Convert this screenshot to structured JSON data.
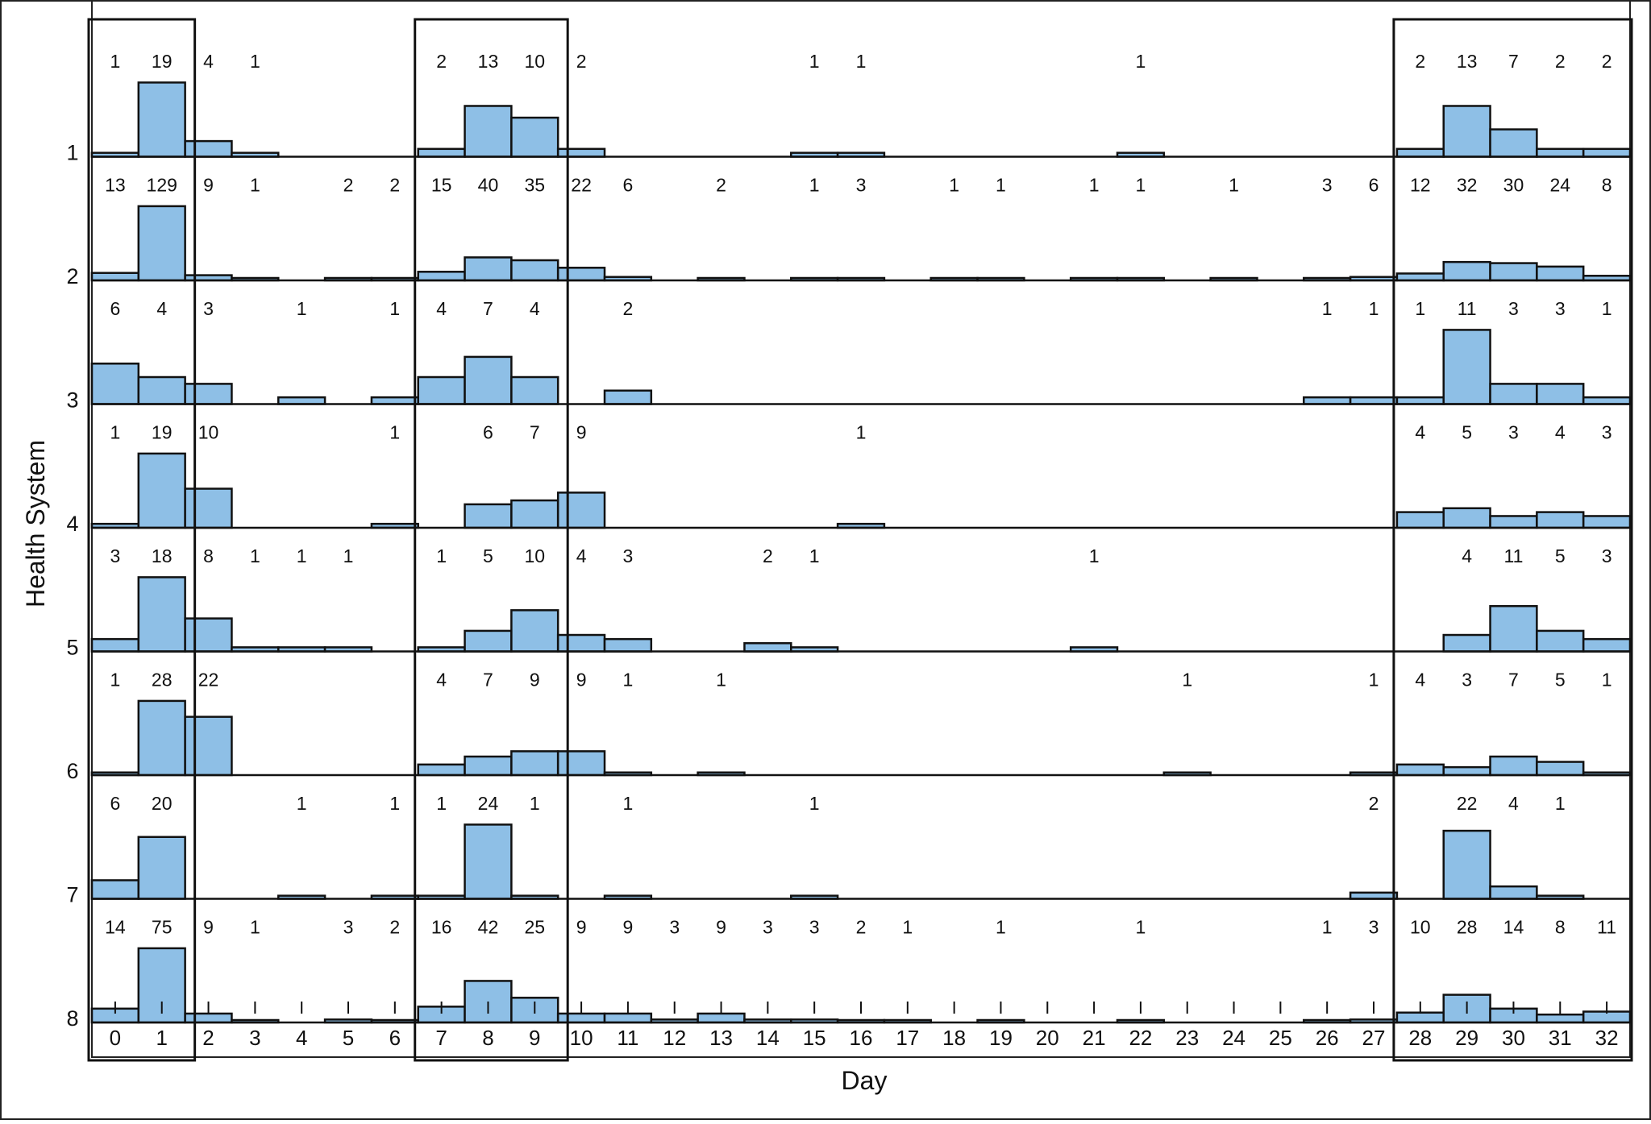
{
  "chart_data": {
    "type": "histogram",
    "xlabel": "Day",
    "ylabel": "Health System",
    "x": [
      0,
      1,
      2,
      3,
      4,
      5,
      6,
      7,
      8,
      9,
      10,
      11,
      12,
      13,
      14,
      15,
      16,
      17,
      18,
      19,
      20,
      21,
      22,
      23,
      24,
      25,
      26,
      27,
      28,
      29,
      30,
      31,
      32
    ],
    "x_ticks": [
      "0",
      "1",
      "2",
      "3",
      "4",
      "5",
      "6",
      "7",
      "8",
      "9",
      "10",
      "11",
      "12",
      "13",
      "14",
      "15",
      "16",
      "17",
      "18",
      "19",
      "20",
      "21",
      "22",
      "23",
      "24",
      "25",
      "26",
      "27",
      "28",
      "29",
      "30",
      "31",
      "32"
    ],
    "bar_color": "#8ebfe6",
    "highlighted_day_ranges": [
      [
        0,
        1
      ],
      [
        7,
        9
      ],
      [
        28,
        32
      ]
    ],
    "series": [
      {
        "name": "1",
        "counts": {
          "0": 1,
          "1": 19,
          "2": 4,
          "3": 1,
          "7": 2,
          "8": 13,
          "9": 10,
          "10": 2,
          "15": 1,
          "16": 1,
          "22": 1,
          "28": 2,
          "29": 13,
          "30": 7,
          "31": 2,
          "32": 2
        }
      },
      {
        "name": "2",
        "counts": {
          "0": 13,
          "1": 129,
          "2": 9,
          "3": 1,
          "5": 2,
          "6": 2,
          "7": 15,
          "8": 40,
          "9": 35,
          "10": 22,
          "11": 6,
          "13": 2,
          "15": 1,
          "16": 3,
          "18": 1,
          "19": 1,
          "21": 1,
          "22": 1,
          "24": 1,
          "26": 3,
          "27": 6,
          "28": 12,
          "29": 32,
          "30": 30,
          "31": 24,
          "32": 8
        }
      },
      {
        "name": "3",
        "counts": {
          "0": 6,
          "1": 4,
          "2": 3,
          "4": 1,
          "6": 1,
          "7": 4,
          "8": 7,
          "9": 4,
          "11": 2,
          "26": 1,
          "27": 1,
          "28": 1,
          "29": 11,
          "30": 3,
          "31": 3,
          "32": 1
        }
      },
      {
        "name": "4",
        "counts": {
          "0": 1,
          "1": 19,
          "2": 10,
          "6": 1,
          "8": 6,
          "9": 7,
          "10": 9,
          "16": 1,
          "28": 4,
          "29": 5,
          "30": 3,
          "31": 4,
          "32": 3
        }
      },
      {
        "name": "5",
        "counts": {
          "0": 3,
          "1": 18,
          "2": 8,
          "3": 1,
          "4": 1,
          "5": 1,
          "7": 1,
          "8": 5,
          "9": 10,
          "10": 4,
          "11": 3,
          "14": 2,
          "15": 1,
          "21": 1,
          "29": 4,
          "30": 11,
          "31": 5,
          "32": 3
        }
      },
      {
        "name": "6",
        "counts": {
          "0": 1,
          "1": 28,
          "2": 22,
          "7": 4,
          "8": 7,
          "9": 9,
          "10": 9,
          "11": 1,
          "13": 1,
          "23": 1,
          "27": 1,
          "28": 4,
          "29": 3,
          "30": 7,
          "31": 5,
          "32": 1
        }
      },
      {
        "name": "7",
        "counts": {
          "0": 6,
          "1": 20,
          "4": 1,
          "6": 1,
          "7": 1,
          "8": 24,
          "9": 1,
          "11": 1,
          "15": 1,
          "27": 2,
          "29": 22,
          "30": 4,
          "31": 1
        }
      },
      {
        "name": "8",
        "counts": {
          "0": 14,
          "1": 75,
          "2": 9,
          "3": 1,
          "5": 3,
          "6": 2,
          "7": 16,
          "8": 42,
          "9": 25,
          "10": 9,
          "11": 9,
          "12": 3,
          "13": 9,
          "14": 3,
          "15": 3,
          "16": 2,
          "17": 1,
          "19": 1,
          "22": 1,
          "26": 1,
          "27": 3,
          "28": 10,
          "29": 28,
          "30": 14,
          "31": 8,
          "32": 11
        }
      }
    ]
  }
}
